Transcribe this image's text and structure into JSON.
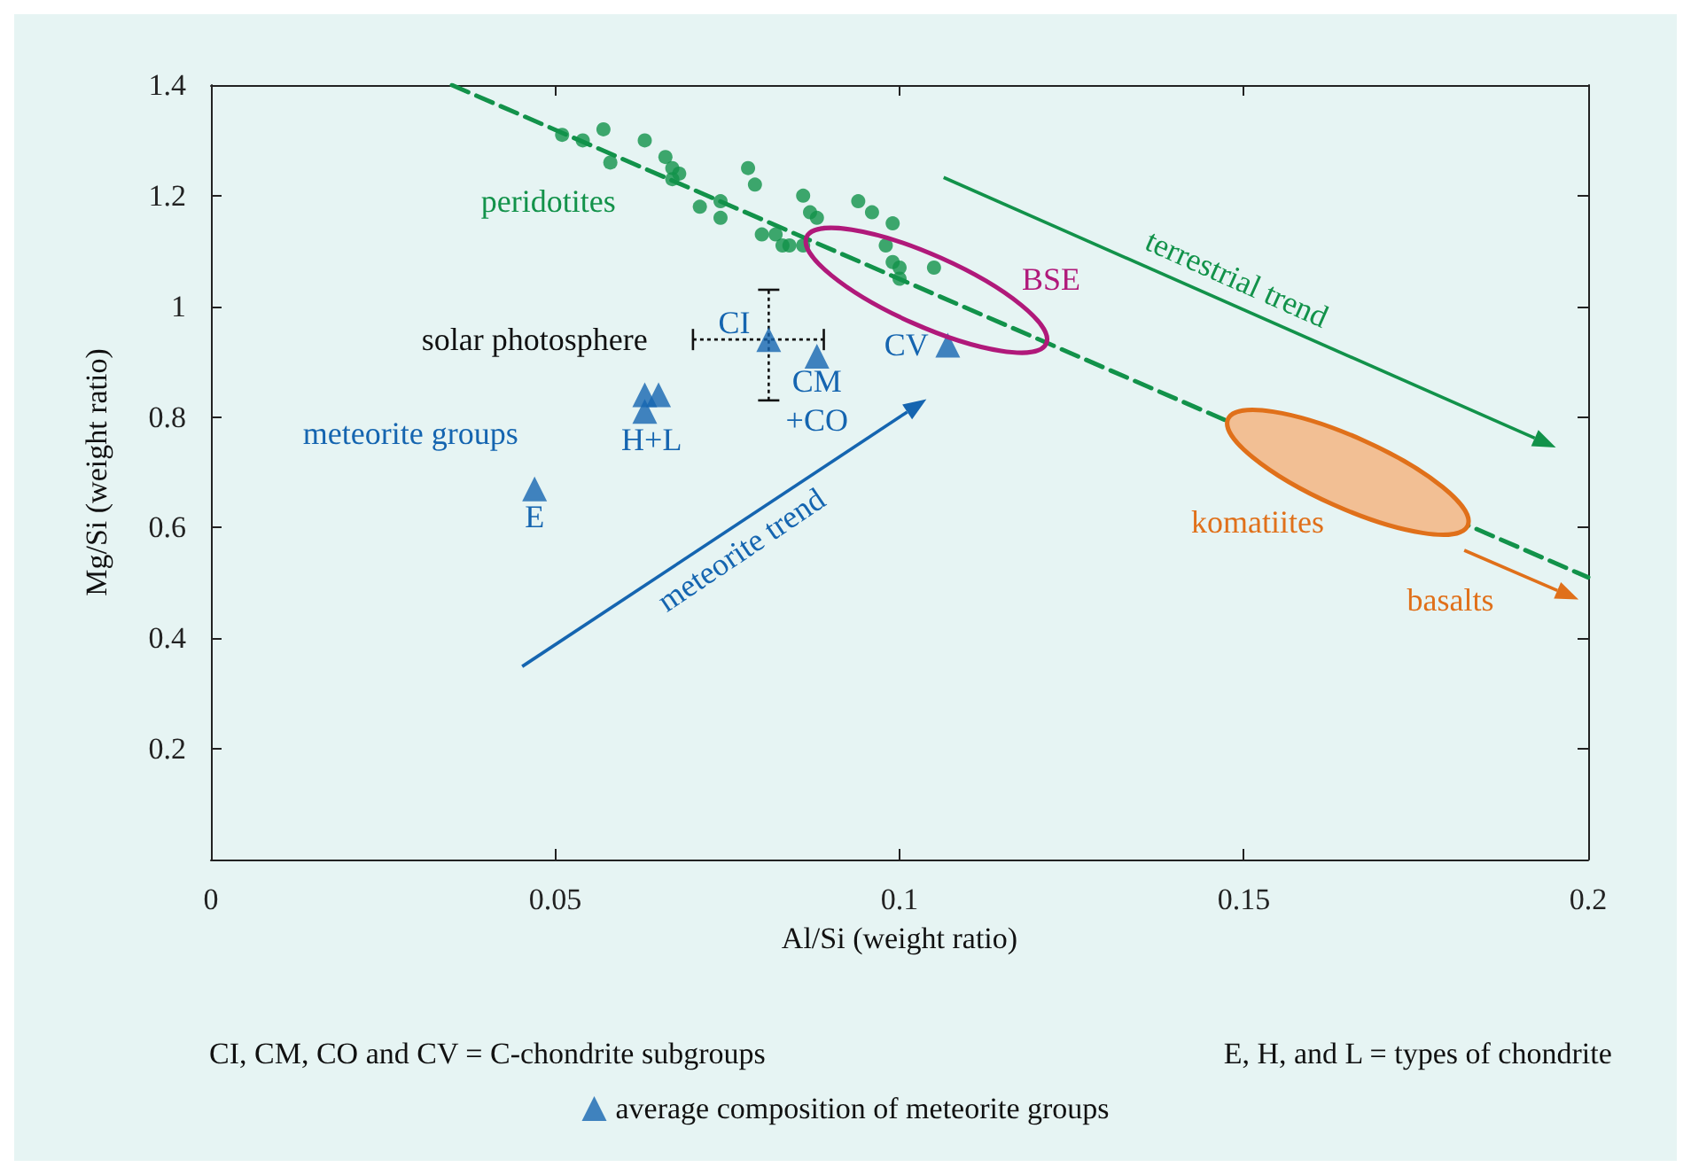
{
  "chart_data": {
    "type": "scatter",
    "xlabel": "Al/Si (weight ratio)",
    "ylabel": "Mg/Si (weight ratio)",
    "xlim": [
      0,
      0.2
    ],
    "ylim": [
      0,
      1.4
    ],
    "xticks": [
      0,
      0.05,
      0.1,
      0.15,
      0.2
    ],
    "yticks": [
      0.2,
      0.4,
      0.6,
      0.8,
      1,
      1.2,
      1.4
    ],
    "grid": false,
    "legend": "bottom",
    "series": [
      {
        "marker": "circle",
        "color": "#12924a",
        "x": [
          0.051,
          0.054,
          0.057,
          0.058,
          0.063,
          0.066,
          0.067,
          0.068,
          0.067,
          0.071,
          0.074,
          0.074,
          0.078,
          0.079,
          0.08,
          0.082,
          0.083,
          0.084,
          0.086,
          0.087,
          0.088,
          0.086,
          0.094,
          0.096,
          0.099,
          0.098,
          0.099,
          0.1,
          0.1,
          0.105
        ],
        "values": [
          1.31,
          1.3,
          1.32,
          1.26,
          1.3,
          1.27,
          1.25,
          1.24,
          1.23,
          1.18,
          1.19,
          1.16,
          1.25,
          1.22,
          1.13,
          1.13,
          1.11,
          1.11,
          1.2,
          1.17,
          1.16,
          1.11,
          1.19,
          1.17,
          1.15,
          1.11,
          1.08,
          1.07,
          1.05,
          1.07
        ]
      },
      {
        "name": "average composition of meteorite groups",
        "marker": "triangle",
        "color": "#1565b0",
        "x": [
          0.047,
          0.063,
          0.063,
          0.065,
          0.081,
          0.088,
          0.107
        ],
        "values": [
          0.67,
          0.81,
          0.84,
          0.84,
          0.94,
          0.91,
          0.93
        ],
        "errors": [
          null,
          null,
          null,
          null,
          [
            0.83,
            1.03
          ],
          null,
          null
        ],
        "xerrors": [
          null,
          null,
          null,
          null,
          [
            0.07,
            0.089
          ],
          null,
          null
        ]
      },
      {
        "type": "line",
        "marker": "none",
        "line_style": "dashed",
        "color": "#12924a",
        "x": [
          0.035,
          0.2
        ],
        "values": [
          1.4,
          0.51
        ]
      }
    ],
    "annotations": [
      "peridotites",
      "solar photosphere",
      "CI",
      "CM\n+CO",
      "H+L",
      "E",
      "CV",
      "meteorite groups",
      "BSE",
      "terrestrial trend",
      "meteorite trend",
      "komatiites",
      "basalts",
      "CI, CM, CO and CV = C-chondrite subgroups",
      "E, H, and L = types of chondrite"
    ]
  }
}
